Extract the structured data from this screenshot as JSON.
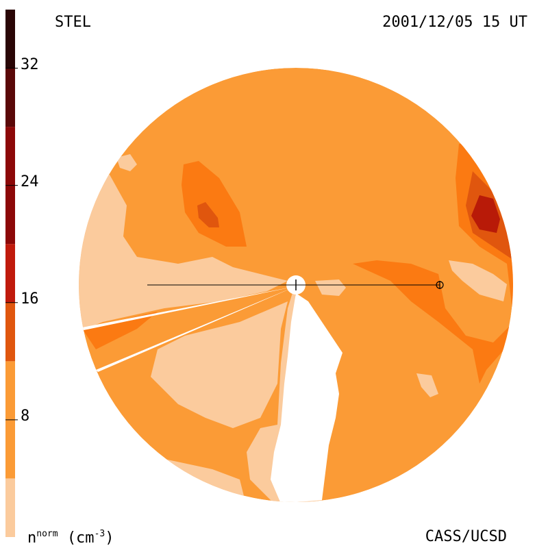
{
  "header": {
    "station": "STEL",
    "datetime": "2001/12/05 15 UT"
  },
  "footer": {
    "credit": "CASS/UCSD",
    "colorbar_label_base": "n",
    "colorbar_label_sup": "norm",
    "colorbar_label_units": "(cm",
    "colorbar_label_units_sup": "-3",
    "colorbar_label_close": ")"
  },
  "colorbar": {
    "min": 0,
    "max": 36,
    "ticks": [
      {
        "value": 8,
        "label": "8"
      },
      {
        "value": 16,
        "label": "16"
      },
      {
        "value": 24,
        "label": "24"
      },
      {
        "value": 32,
        "label": "32"
      }
    ],
    "levels": [
      {
        "from": 0,
        "to": 4,
        "color": "#fbcb9d"
      },
      {
        "from": 4,
        "to": 12,
        "color": "#fb9b36"
      },
      {
        "from": 12,
        "to": 16,
        "color": "#e0560e"
      },
      {
        "from": 16,
        "to": 20,
        "color": "#c01a0c"
      },
      {
        "from": 20,
        "to": 28,
        "color": "#8c0808"
      },
      {
        "from": 28,
        "to": 32,
        "color": "#5a0808"
      },
      {
        "from": 32,
        "to": 36,
        "color": "#2a0606"
      }
    ]
  },
  "colors": {
    "light": "#fbcb9d",
    "base": "#fb9b36",
    "mid": "#fb7a12",
    "dark": "#e0560e",
    "darker": "#b81a08"
  }
}
